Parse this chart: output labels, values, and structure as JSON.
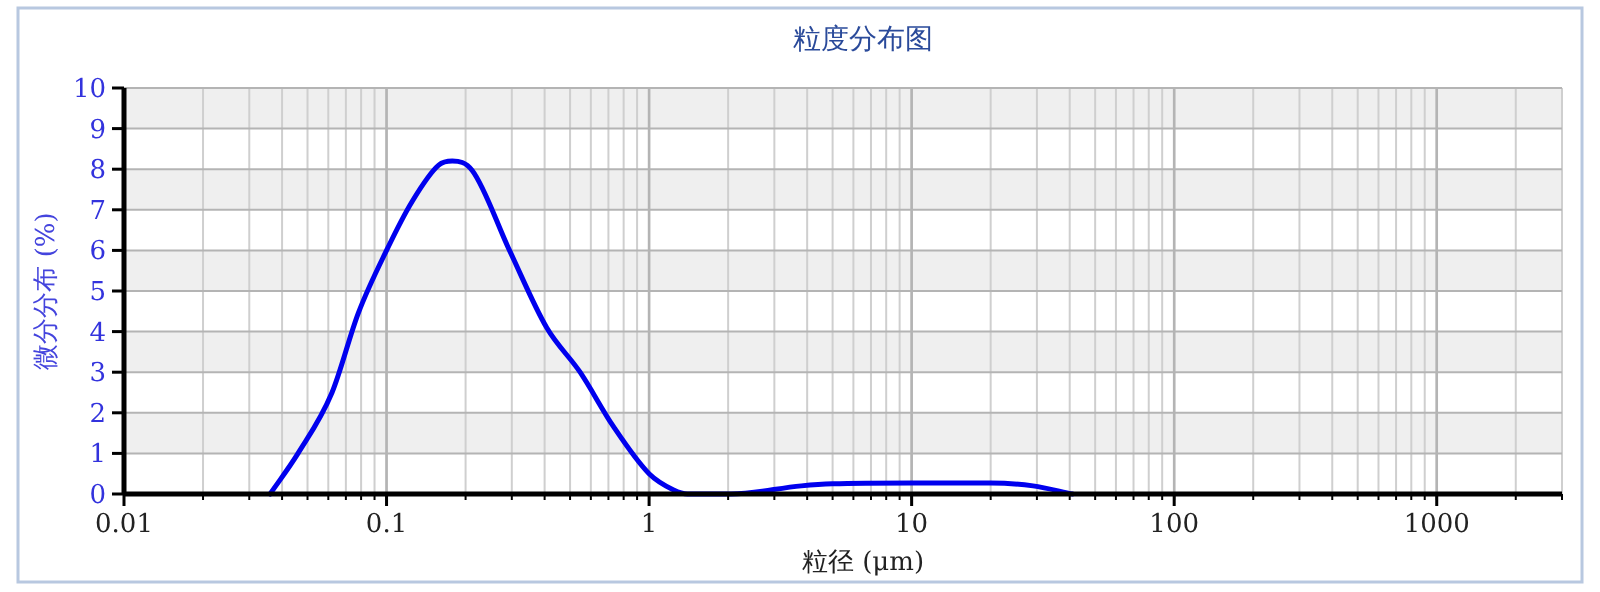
{
  "chart_data": {
    "type": "line",
    "title": "粒度分布图",
    "xlabel": "粒径 (μm)",
    "ylabel": "微分分布 (%)",
    "log": "x",
    "grid": true,
    "line_style": "solid",
    "marker": "none",
    "xlim": [
      0.01,
      3000
    ],
    "xticks": [
      0.01,
      0.1,
      1,
      10,
      100,
      1000
    ],
    "ylim": [
      0,
      10
    ],
    "yticks": [
      0,
      1,
      2,
      3,
      4,
      5,
      6,
      7,
      8,
      9,
      10
    ],
    "series": [
      {
        "color": "#0000ee",
        "x": [
          0.036,
          0.046,
          0.062,
          0.078,
          0.1,
          0.125,
          0.158,
          0.178,
          0.212,
          0.294,
          0.407,
          0.546,
          0.73,
          1.0,
          1.24,
          1.4,
          2.05,
          3.8,
          5,
          10,
          20,
          29,
          41
        ],
        "values": [
          0,
          1.0,
          2.5,
          4.45,
          6.0,
          7.2,
          8.1,
          8.2,
          7.97,
          6.0,
          4.1,
          3.0,
          1.67,
          0.5,
          0.1,
          0,
          0,
          0.2,
          0.25,
          0.27,
          0.27,
          0.2,
          0
        ]
      }
    ]
  }
}
